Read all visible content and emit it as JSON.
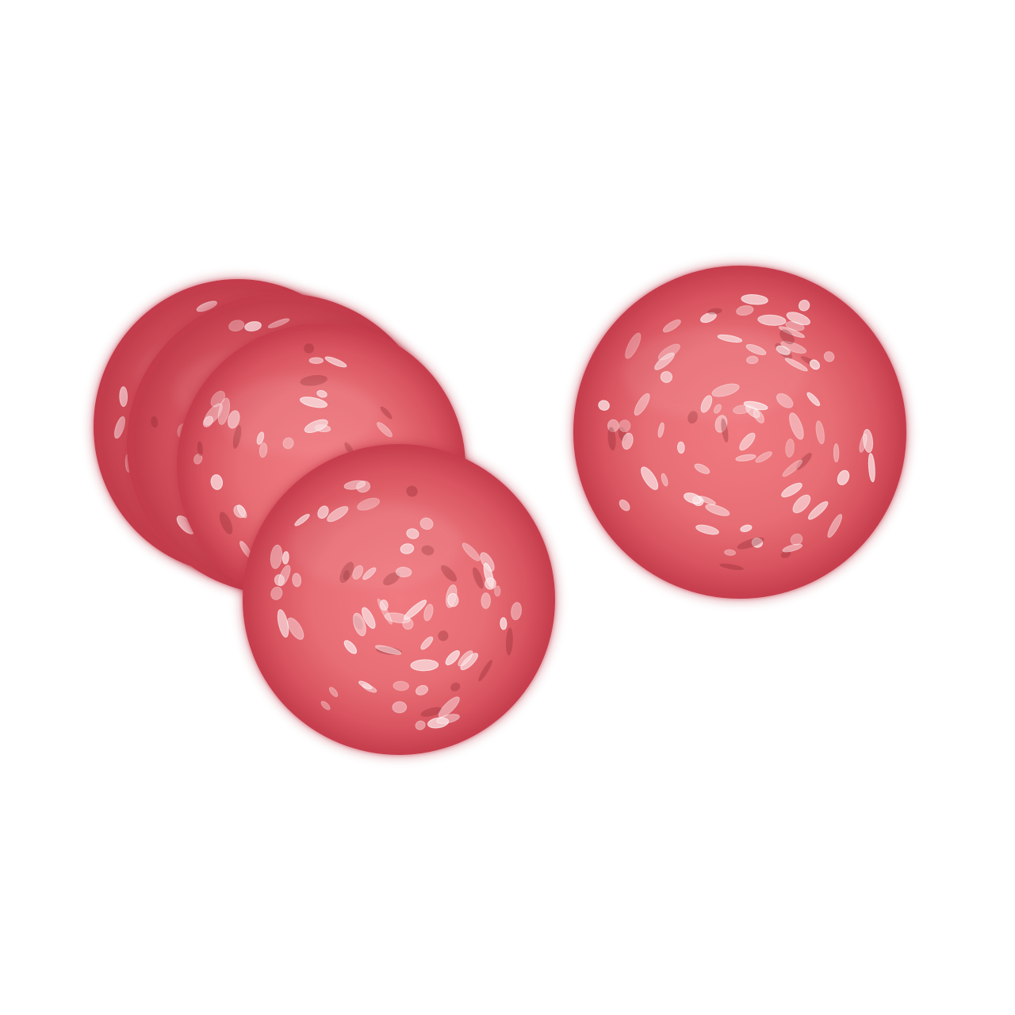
{
  "illustration": {
    "subject": "salami-slices",
    "slice_count": 5,
    "colors": {
      "background": "#ffffff",
      "slice_center": "#f07a80",
      "slice_mid": "#e06068",
      "slice_rim": "#c9404f",
      "slice_shadow": "#b83545",
      "fat_fleck": "#fbe0e2",
      "fat_outline": "#ffffff",
      "dark_fleck": "#8e2a35"
    }
  }
}
